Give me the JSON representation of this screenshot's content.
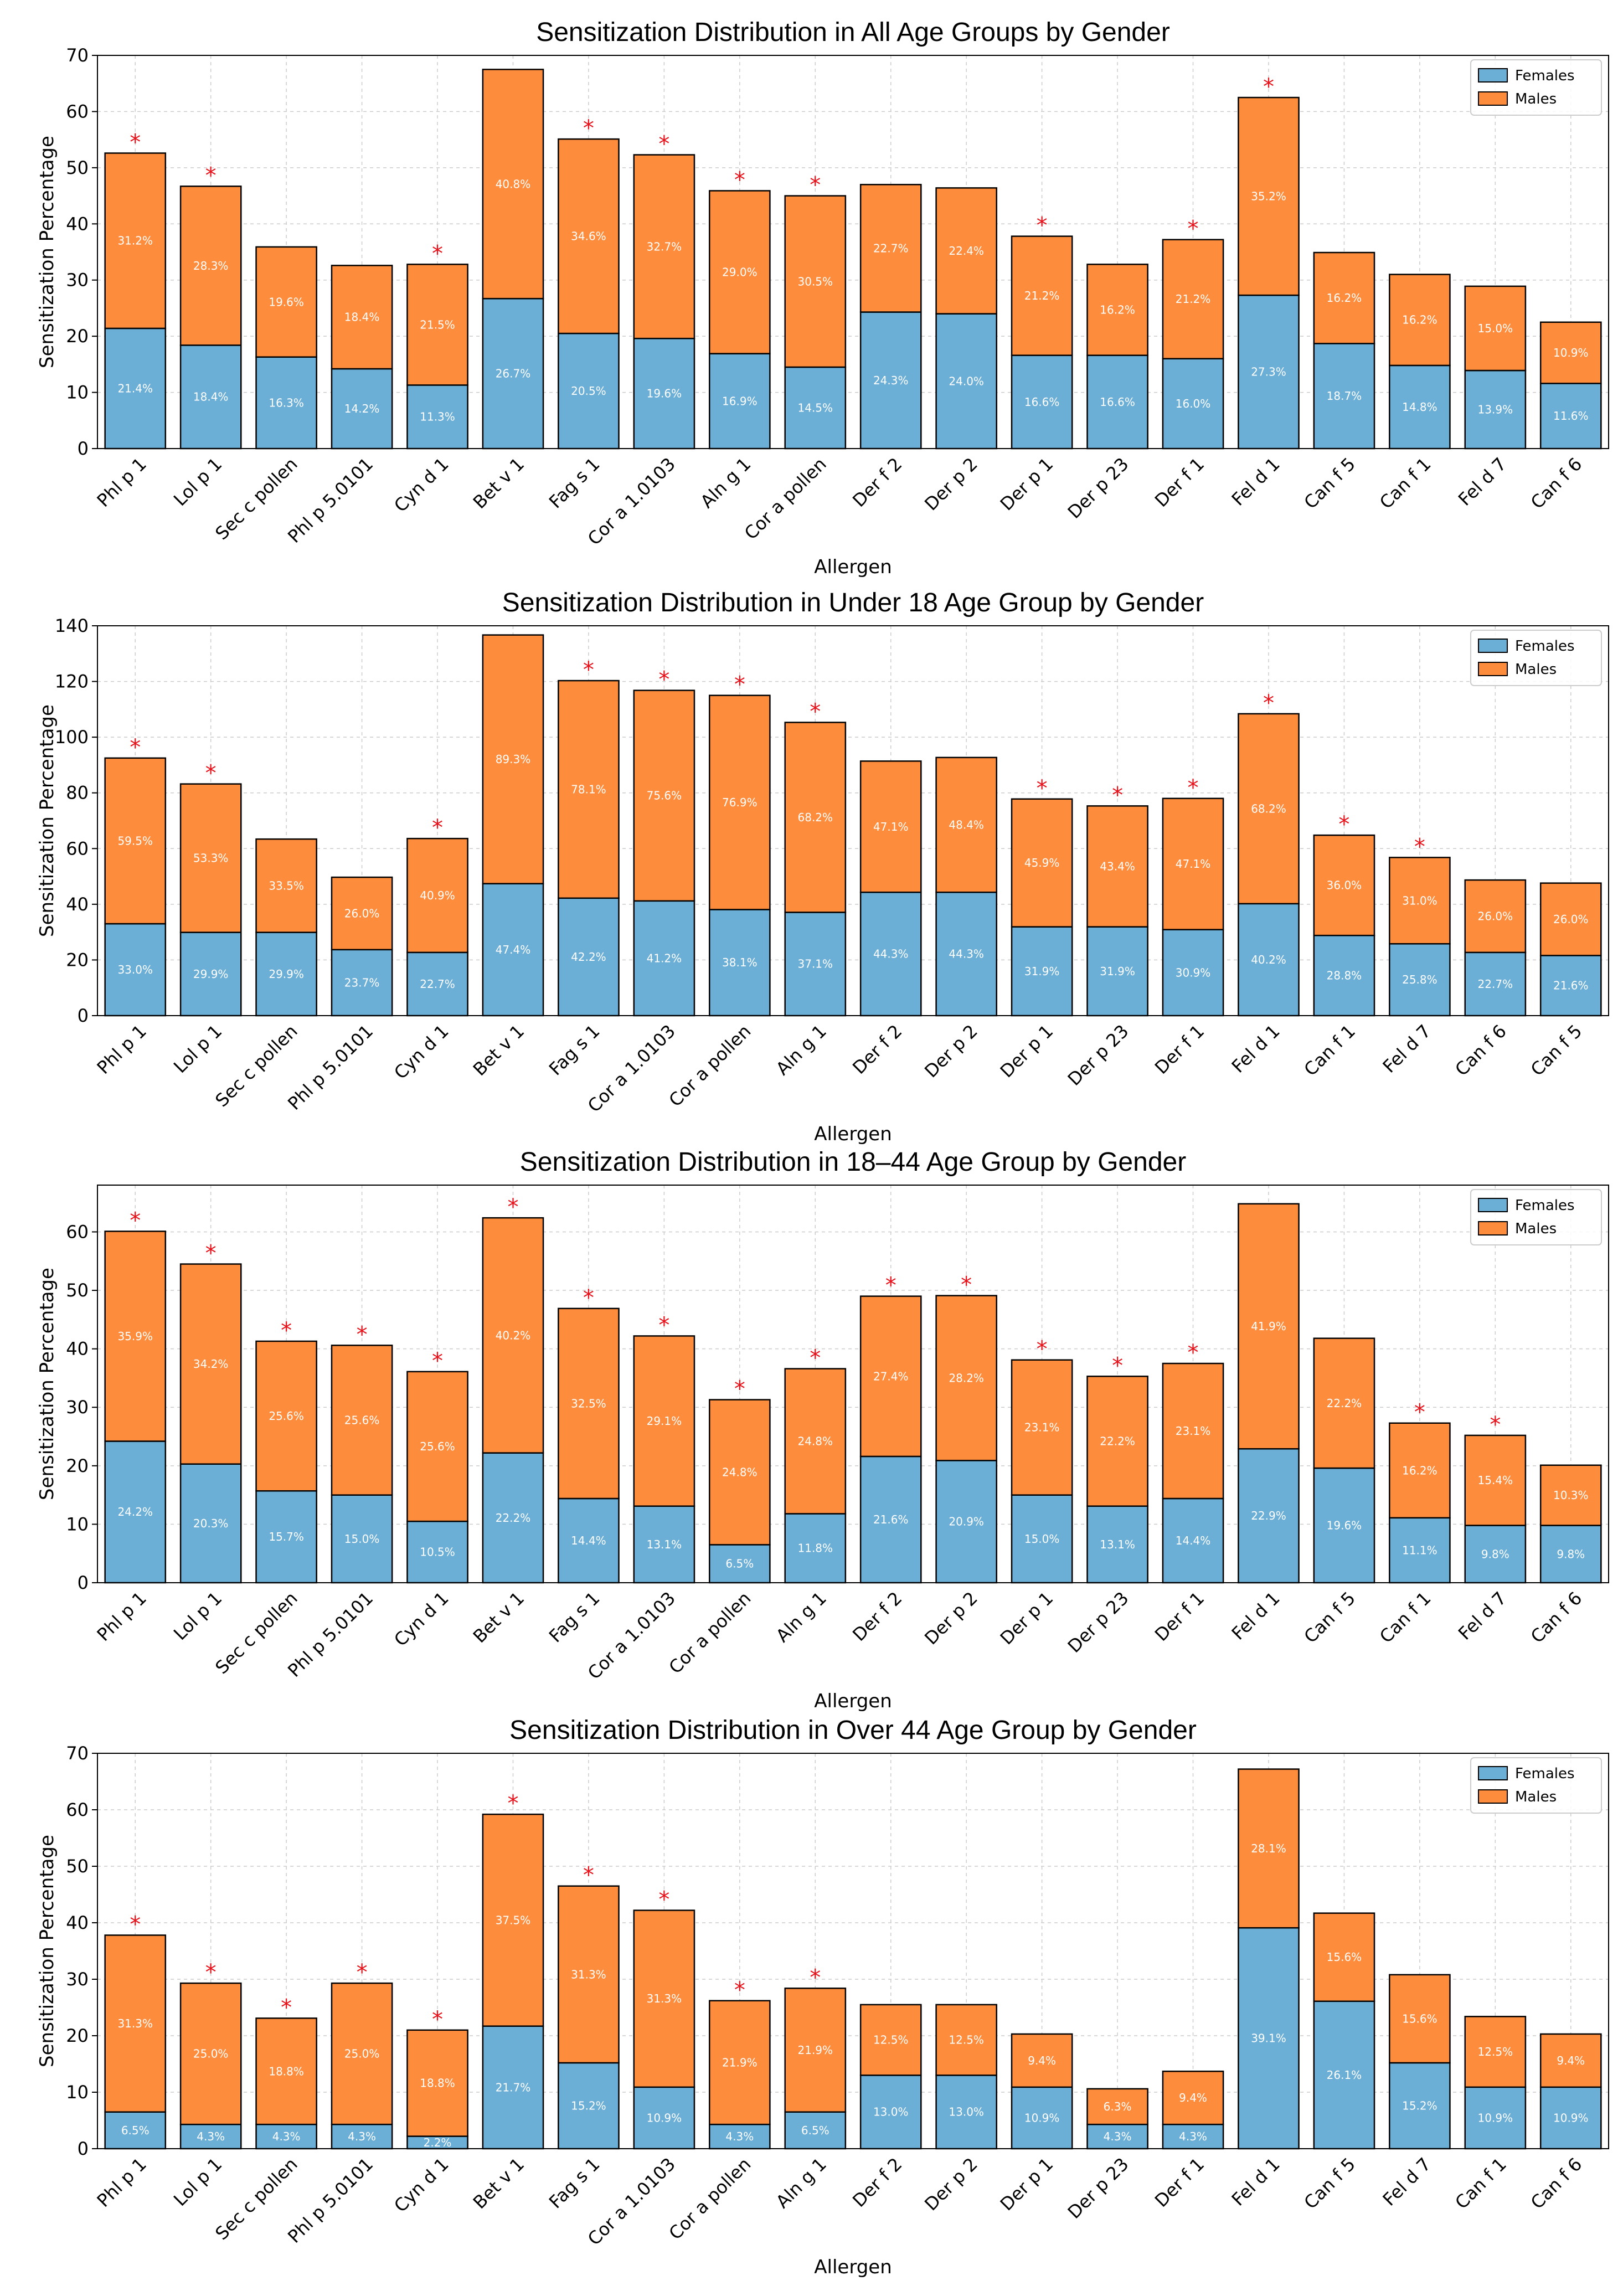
{
  "colors": {
    "females": "#6baed6",
    "males": "#fd8d3c",
    "star": "#e8121b",
    "grid": "#cccccc",
    "edge": "#000000"
  },
  "chart_data": [
    {
      "type": "bar",
      "stacked": true,
      "title": "Sensitization Distribution in All Age Groups by Gender",
      "xlabel": "Allergen",
      "ylabel": "Sensitization Percentage",
      "ylim": [
        0,
        70
      ],
      "yticks": [
        0,
        10,
        20,
        30,
        40,
        50,
        60,
        70
      ],
      "legend": "top-right",
      "grid": true,
      "categories": [
        "Phl p 1",
        "Lol p 1",
        "Sec c pollen",
        "Phl p 5.0101",
        "Cyn d 1",
        "Bet v 1",
        "Fag s 1",
        "Cor a 1.0103",
        "Aln g 1",
        "Cor a pollen",
        "Der f 2",
        "Der p 2",
        "Der p 1",
        "Der p 23",
        "Der f 1",
        "Fel d 1",
        "Can f 5",
        "Can f 1",
        "Fel d 7",
        "Can f 6"
      ],
      "series": [
        {
          "name": "Females",
          "values": [
            21.4,
            18.4,
            16.3,
            14.2,
            11.3,
            26.7,
            20.5,
            19.6,
            16.9,
            14.5,
            24.3,
            24.0,
            16.6,
            16.6,
            16.0,
            27.3,
            18.7,
            14.8,
            13.9,
            11.6
          ]
        },
        {
          "name": "Males",
          "values": [
            31.2,
            28.3,
            19.6,
            18.4,
            21.5,
            40.8,
            34.6,
            32.7,
            29.0,
            30.5,
            22.7,
            22.4,
            21.2,
            16.2,
            21.2,
            35.2,
            16.2,
            16.2,
            15.0,
            10.9
          ]
        }
      ],
      "significant": [
        true,
        true,
        false,
        false,
        true,
        false,
        true,
        true,
        true,
        true,
        false,
        false,
        true,
        false,
        true,
        true,
        false,
        false,
        false,
        false
      ],
      "marker": "*"
    },
    {
      "type": "bar",
      "stacked": true,
      "title": "Sensitization Distribution in Under 18 Age Group by Gender",
      "xlabel": "Allergen",
      "ylabel": "Sensitization Percentage",
      "ylim": [
        0,
        140
      ],
      "yticks": [
        0,
        20,
        40,
        60,
        80,
        100,
        120,
        140
      ],
      "legend": "top-right",
      "grid": true,
      "categories": [
        "Phl p 1",
        "Lol p 1",
        "Sec c pollen",
        "Phl p 5.0101",
        "Cyn d 1",
        "Bet v 1",
        "Fag s 1",
        "Cor a 1.0103",
        "Cor a pollen",
        "Aln g 1",
        "Der f 2",
        "Der p 2",
        "Der p 1",
        "Der p 23",
        "Der f 1",
        "Fel d 1",
        "Can f 1",
        "Fel d 7",
        "Can f 6",
        "Can f 5"
      ],
      "series": [
        {
          "name": "Females",
          "values": [
            33.0,
            29.9,
            29.9,
            23.7,
            22.7,
            47.4,
            42.2,
            41.2,
            38.1,
            37.1,
            44.3,
            44.3,
            31.9,
            31.9,
            30.9,
            40.2,
            28.8,
            25.8,
            22.7,
            21.6
          ]
        },
        {
          "name": "Males",
          "values": [
            59.5,
            53.3,
            33.5,
            26.0,
            40.9,
            89.3,
            78.1,
            75.6,
            76.9,
            68.2,
            47.1,
            48.4,
            45.9,
            43.4,
            47.1,
            68.2,
            36.0,
            31.0,
            26.0,
            26.0
          ]
        }
      ],
      "significant": [
        true,
        true,
        false,
        false,
        true,
        false,
        true,
        true,
        true,
        true,
        false,
        false,
        true,
        true,
        true,
        true,
        true,
        true,
        false,
        false
      ],
      "marker": "*"
    },
    {
      "type": "bar",
      "stacked": true,
      "title": "Sensitization Distribution in 18–44 Age Group by Gender",
      "xlabel": "Allergen",
      "ylabel": "Sensitization Percentage",
      "ylim": [
        0,
        68
      ],
      "yticks": [
        0,
        10,
        20,
        30,
        40,
        50,
        60
      ],
      "legend": "top-right",
      "grid": true,
      "categories": [
        "Phl p 1",
        "Lol p 1",
        "Sec c pollen",
        "Phl p 5.0101",
        "Cyn d 1",
        "Bet v 1",
        "Fag s 1",
        "Cor a 1.0103",
        "Cor a pollen",
        "Aln g 1",
        "Der f 2",
        "Der p 2",
        "Der p 1",
        "Der p 23",
        "Der f 1",
        "Fel d 1",
        "Can f 5",
        "Can f 1",
        "Fel d 7",
        "Can f 6"
      ],
      "series": [
        {
          "name": "Females",
          "values": [
            24.2,
            20.3,
            15.7,
            15.0,
            10.5,
            22.2,
            14.4,
            13.1,
            6.5,
            11.8,
            21.6,
            20.9,
            15.0,
            13.1,
            14.4,
            22.9,
            19.6,
            11.1,
            9.8,
            9.8
          ]
        },
        {
          "name": "Males",
          "values": [
            35.9,
            34.2,
            25.6,
            25.6,
            25.6,
            40.2,
            32.5,
            29.1,
            24.8,
            24.8,
            27.4,
            28.2,
            23.1,
            22.2,
            23.1,
            41.9,
            22.2,
            16.2,
            15.4,
            10.3
          ]
        }
      ],
      "significant": [
        true,
        true,
        true,
        true,
        true,
        true,
        true,
        true,
        true,
        true,
        true,
        true,
        true,
        true,
        true,
        false,
        false,
        true,
        true,
        false
      ],
      "marker": "*"
    },
    {
      "type": "bar",
      "stacked": true,
      "title": "Sensitization Distribution in Over 44 Age Group by Gender",
      "xlabel": "Allergen",
      "ylabel": "Sensitization Percentage",
      "ylim": [
        0,
        70
      ],
      "yticks": [
        0,
        10,
        20,
        30,
        40,
        50,
        60,
        70
      ],
      "legend": "top-right",
      "grid": true,
      "categories": [
        "Phl p 1",
        "Lol p 1",
        "Sec c pollen",
        "Phl p 5.0101",
        "Cyn d 1",
        "Bet v 1",
        "Fag s 1",
        "Cor a 1.0103",
        "Cor a pollen",
        "Aln g 1",
        "Der f 2",
        "Der p 2",
        "Der p 1",
        "Der p 23",
        "Der f 1",
        "Fel d 1",
        "Can f 5",
        "Fel d 7",
        "Can f 1",
        "Can f 6"
      ],
      "series": [
        {
          "name": "Females",
          "values": [
            6.5,
            4.3,
            4.3,
            4.3,
            2.2,
            21.7,
            15.2,
            10.9,
            4.3,
            6.5,
            13.0,
            13.0,
            10.9,
            4.3,
            4.3,
            39.1,
            26.1,
            15.2,
            10.9,
            10.9
          ]
        },
        {
          "name": "Males",
          "values": [
            31.3,
            25.0,
            18.8,
            25.0,
            18.8,
            37.5,
            31.3,
            31.3,
            21.9,
            21.9,
            12.5,
            12.5,
            9.4,
            6.3,
            9.4,
            28.1,
            15.6,
            15.6,
            12.5,
            9.4
          ]
        }
      ],
      "significant": [
        true,
        true,
        true,
        true,
        true,
        true,
        true,
        true,
        true,
        true,
        false,
        false,
        false,
        false,
        false,
        false,
        false,
        false,
        false,
        false
      ],
      "marker": "*"
    }
  ]
}
